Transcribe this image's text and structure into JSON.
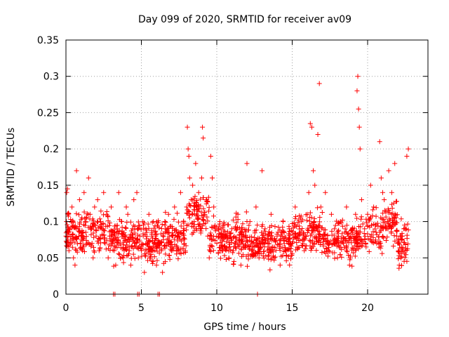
{
  "chart_data": {
    "type": "scatter",
    "title": "Day 099 of 2020, SRMTID for receiver av09",
    "xlabel": "GPS time / hours",
    "ylabel": "SRMTID / TECUs",
    "xlim": [
      0,
      24
    ],
    "ylim": [
      0,
      0.35
    ],
    "xticks": [
      0,
      5,
      10,
      15,
      20
    ],
    "xtick_labels": [
      "0",
      "5",
      "10",
      "15",
      "20"
    ],
    "yticks": [
      0,
      0.05,
      0.1,
      0.15,
      0.2,
      0.25,
      0.3,
      0.35
    ],
    "ytick_labels": [
      "0",
      "0.05",
      "0.1",
      "0.15",
      "0.2",
      "0.25",
      "0.3",
      "0.35"
    ],
    "grid": true,
    "marker": "+",
    "color": "#ff0000",
    "series": [
      {
        "name": "SRMTID",
        "x": [
          0.0,
          0.05,
          0.1,
          0.15,
          0.2,
          0.25,
          0.3,
          0.35,
          0.4,
          0.5,
          0.6,
          0.7,
          0.8,
          0.9,
          1.0,
          1.1,
          1.2,
          1.3,
          1.4,
          1.5,
          1.6,
          1.7,
          1.8,
          1.9,
          2.0,
          2.1,
          2.2,
          2.3,
          2.4,
          2.5,
          2.6,
          2.7,
          2.8,
          2.9,
          3.0,
          3.2,
          3.3,
          3.4,
          3.5,
          3.6,
          3.7,
          3.8,
          3.9,
          4.0,
          4.1,
          4.2,
          4.3,
          4.4,
          4.5,
          4.6,
          4.7,
          4.8,
          4.9,
          5.0,
          5.1,
          5.2,
          5.3,
          5.4,
          5.5,
          5.6,
          5.7,
          5.8,
          5.9,
          6.0,
          6.2,
          6.4,
          6.6,
          6.8,
          7.0,
          7.2,
          7.4,
          7.6,
          7.8,
          8.0,
          8.05,
          8.1,
          8.15,
          8.2,
          8.3,
          8.4,
          8.5,
          8.6,
          8.7,
          8.8,
          8.9,
          9.0,
          9.05,
          9.1,
          9.2,
          9.3,
          9.4,
          9.5,
          9.6,
          9.7,
          9.8,
          9.9,
          10.0,
          10.2,
          10.4,
          10.6,
          10.8,
          11.0,
          11.2,
          11.4,
          11.6,
          11.8,
          12.0,
          12.2,
          12.4,
          12.6,
          12.8,
          13.0,
          13.2,
          13.4,
          13.6,
          13.8,
          14.0,
          14.2,
          14.4,
          14.6,
          14.8,
          15.0,
          15.2,
          15.4,
          15.6,
          15.8,
          16.0,
          16.1,
          16.2,
          16.3,
          16.4,
          16.5,
          16.6,
          16.7,
          16.8,
          16.9,
          17.0,
          17.2,
          17.4,
          17.6,
          17.8,
          18.0,
          18.2,
          18.4,
          18.6,
          18.8,
          19.0,
          19.2,
          19.3,
          19.35,
          19.4,
          19.45,
          19.5,
          19.6,
          19.8,
          20.0,
          20.2,
          20.4,
          20.6,
          20.8,
          20.9,
          21.0,
          21.1,
          21.2,
          21.4,
          21.6,
          21.8,
          22.0,
          22.1,
          22.2,
          22.3,
          22.4,
          22.5,
          22.6,
          22.7,
          3.15,
          3.25,
          4.75,
          4.85,
          6.1,
          6.2,
          12.7
        ],
        "y": [
          0.08,
          0.14,
          0.145,
          0.11,
          0.06,
          0.09,
          0.07,
          0.1,
          0.12,
          0.05,
          0.04,
          0.17,
          0.09,
          0.13,
          0.08,
          0.06,
          0.14,
          0.1,
          0.07,
          0.16,
          0.11,
          0.09,
          0.05,
          0.12,
          0.08,
          0.13,
          0.06,
          0.1,
          0.09,
          0.14,
          0.07,
          0.11,
          0.05,
          0.08,
          0.12,
          0.06,
          0.04,
          0.09,
          0.14,
          0.07,
          0.1,
          0.05,
          0.08,
          0.12,
          0.11,
          0.06,
          0.04,
          0.09,
          0.13,
          0.07,
          0.14,
          0.05,
          0.08,
          0.06,
          0.1,
          0.03,
          0.09,
          0.07,
          0.11,
          0.05,
          0.08,
          0.1,
          0.06,
          0.04,
          0.07,
          0.03,
          0.09,
          0.11,
          0.06,
          0.12,
          0.08,
          0.14,
          0.1,
          0.12,
          0.23,
          0.2,
          0.19,
          0.16,
          0.13,
          0.15,
          0.1,
          0.18,
          0.12,
          0.14,
          0.09,
          0.16,
          0.23,
          0.215,
          0.11,
          0.13,
          0.08,
          0.05,
          0.19,
          0.16,
          0.12,
          0.09,
          0.07,
          0.1,
          0.06,
          0.08,
          0.05,
          0.09,
          0.07,
          0.11,
          0.04,
          0.08,
          0.18,
          0.1,
          0.06,
          0.12,
          0.05,
          0.17,
          0.09,
          0.07,
          0.11,
          0.05,
          0.08,
          0.04,
          0.1,
          0.06,
          0.09,
          0.07,
          0.12,
          0.08,
          0.1,
          0.06,
          0.11,
          0.14,
          0.235,
          0.23,
          0.17,
          0.15,
          0.09,
          0.22,
          0.29,
          0.12,
          0.08,
          0.14,
          0.06,
          0.11,
          0.09,
          0.05,
          0.1,
          0.07,
          0.12,
          0.04,
          0.09,
          0.11,
          0.28,
          0.3,
          0.255,
          0.23,
          0.2,
          0.13,
          0.09,
          0.11,
          0.15,
          0.12,
          0.07,
          0.21,
          0.16,
          0.14,
          0.13,
          0.09,
          0.17,
          0.14,
          0.18,
          0.07,
          0.04,
          0.05,
          0.08,
          0.09,
          0.06,
          0.19,
          0.2,
          0.0,
          0.0,
          0.0,
          0.0,
          0.0,
          0.0,
          0.0
        ]
      }
    ],
    "noise_seed": 99
  }
}
